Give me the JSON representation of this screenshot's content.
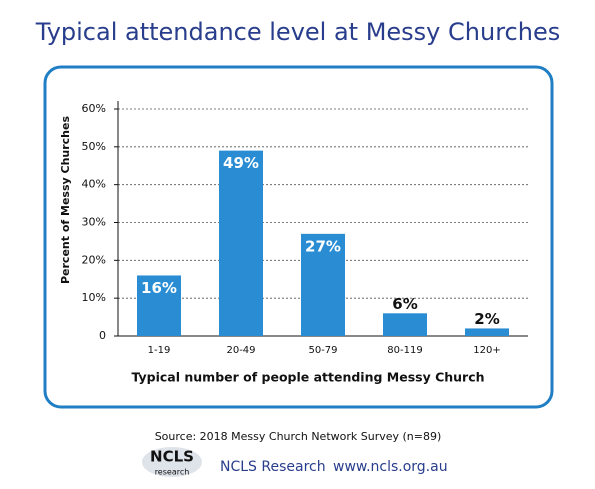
{
  "chart_data": {
    "type": "bar",
    "title": "Typical attendance level at Messy Churches",
    "categories": [
      "1-19",
      "20-49",
      "50-79",
      "80-119",
      "120+"
    ],
    "values": [
      16,
      49,
      27,
      6,
      2
    ],
    "value_labels": [
      "16%",
      "49%",
      "27%",
      "6%",
      "2%"
    ],
    "color": "#2a8dd4",
    "ylim": [
      0,
      60
    ],
    "yticks": [
      0,
      {
        "value": 10,
        "label": "10%"
      },
      {
        "value": 20,
        "label": "20%"
      },
      {
        "value": 30,
        "label": "30%"
      },
      {
        "value": 40,
        "label": "40%"
      },
      {
        "value": 50,
        "label": "50%"
      },
      {
        "value": 60,
        "label": "60%"
      }
    ],
    "grid": true,
    "y_label": "Percent of Messy Churches",
    "x_label": "Typical number of people attending Messy Church",
    "source": "Source: 2018 Messy Church Network Survey (n=89)"
  },
  "footer": {
    "logo": "NCLS",
    "logo_sub": "research",
    "org": "NCLS Research",
    "url": "www.ncls.org.au"
  }
}
